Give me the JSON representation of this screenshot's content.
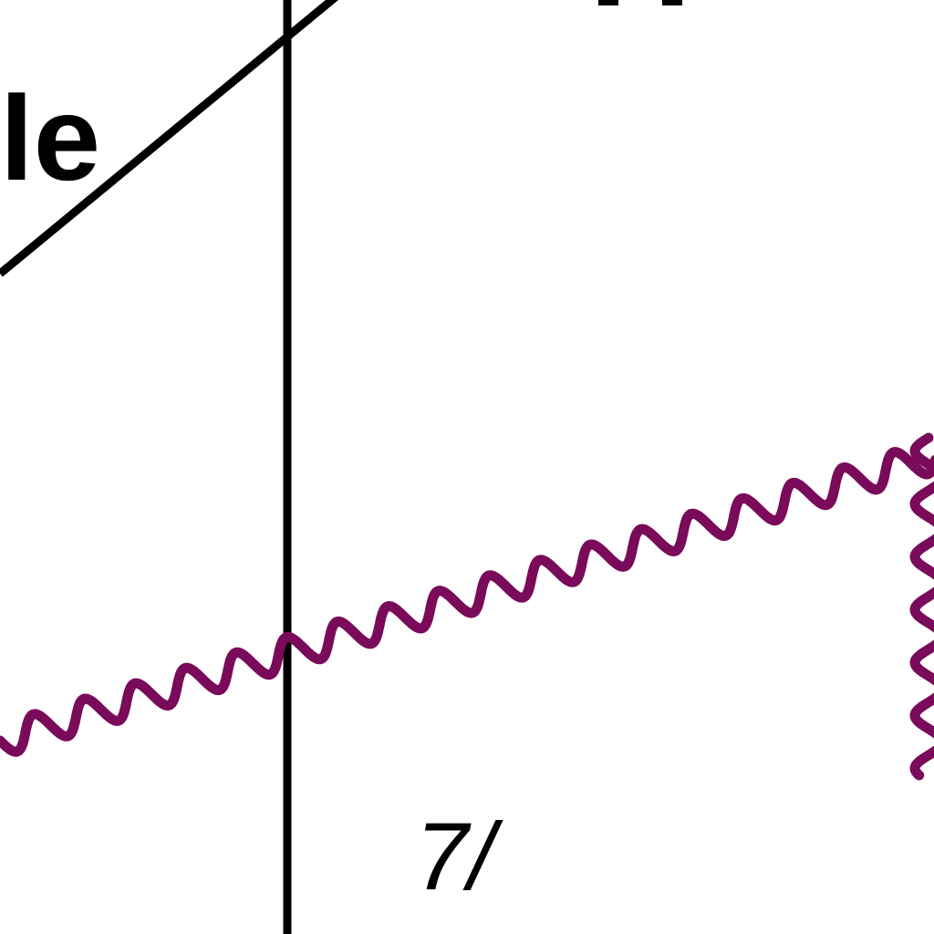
{
  "diagram": {
    "word_fragment_label": "le",
    "bottom_label": "7/",
    "colors": {
      "background": "#ffffff",
      "line": "#000000",
      "wavy": "#7a0a5a"
    }
  }
}
